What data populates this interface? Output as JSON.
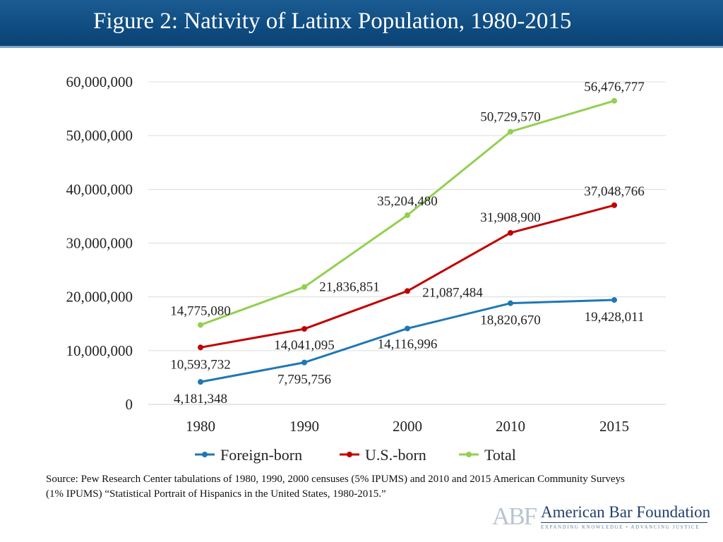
{
  "title": "Figure 2: Nativity of Latinx Population, 1980-2015",
  "chart_data": {
    "type": "line",
    "title": "Figure 2: Nativity of Latinx Population, 1980-2015",
    "xlabel": "",
    "ylabel": "",
    "categories": [
      "1980",
      "1990",
      "2000",
      "2010",
      "2015"
    ],
    "ylim": [
      0,
      60000000
    ],
    "yticks": [
      0,
      10000000,
      20000000,
      30000000,
      40000000,
      50000000,
      60000000
    ],
    "ytick_labels": [
      "0",
      "10,000,000",
      "20,000,000",
      "30,000,000",
      "40,000,000",
      "50,000,000",
      "60,000,000"
    ],
    "grid": true,
    "legend_position": "bottom",
    "series": [
      {
        "name": "Foreign-born",
        "color": "#1f77b4",
        "values": [
          4181348,
          7795756,
          14116996,
          18820670,
          19428011
        ],
        "labels": [
          "4,181,348",
          "7,795,756",
          "14,116,996",
          "18,820,670",
          "19,428,011"
        ]
      },
      {
        "name": "U.S.-born",
        "color": "#c00000",
        "values": [
          10593732,
          14041095,
          21087484,
          31908900,
          37048766
        ],
        "labels": [
          "10,593,732",
          "14,041,095",
          "21,087,484",
          "31,908,900",
          "37,048,766"
        ]
      },
      {
        "name": "Total",
        "color": "#92d050",
        "values": [
          14775080,
          21836851,
          35204480,
          50729570,
          56476777
        ],
        "labels": [
          "14,775,080",
          "21,836,851",
          "35,204,480",
          "50,729,570",
          "56,476,777"
        ]
      }
    ]
  },
  "source": {
    "text": "Source: Pew Research Center tabulations of 1980, 1990, 2000 censuses (5% IPUMS) and 2010 and 2015 American Community Surveys (1% IPUMS) “Statistical Portrait of Hispanics in the United States, 1980-2015.”"
  },
  "logo": {
    "mark": "ABF",
    "name": "American Bar Foundation",
    "tagline": "EXPANDING KNOWLEDGE • ADVANCING JUSTICE"
  }
}
